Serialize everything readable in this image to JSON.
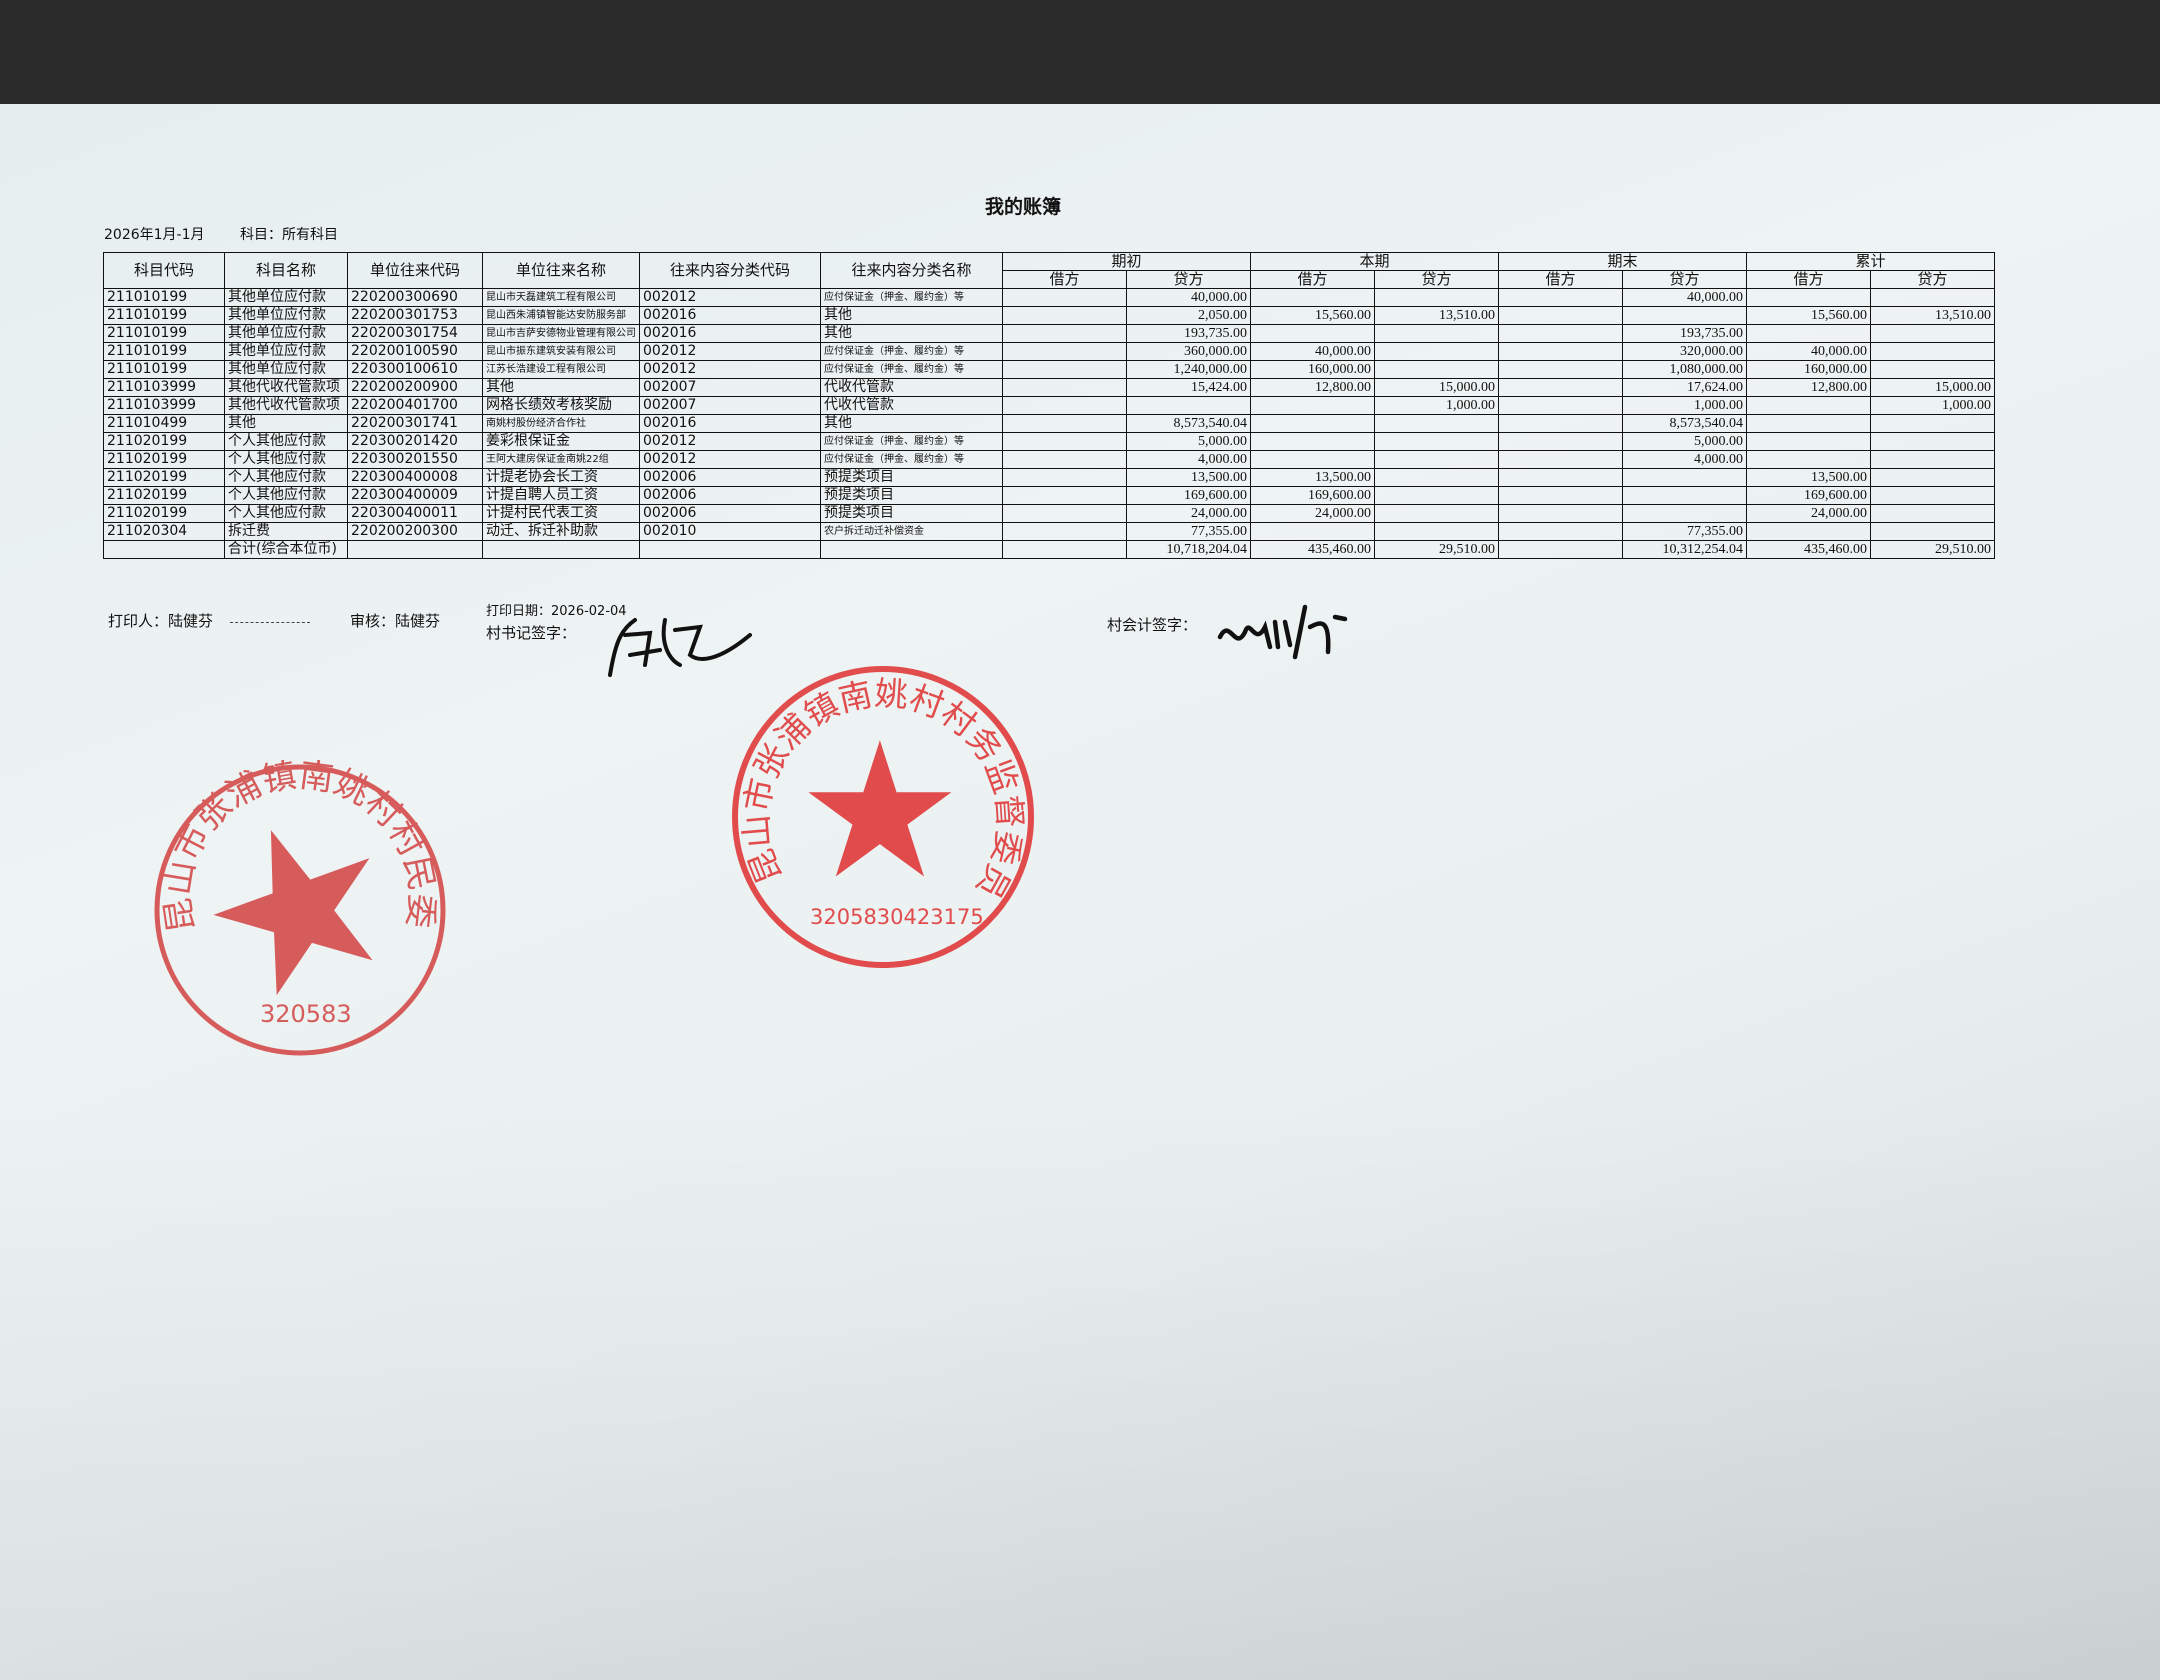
{
  "document": {
    "title": "我的账簿",
    "period": "2026年1月-1月",
    "subject": "科目：所有科目"
  },
  "table": {
    "headers": [
      "科目代码",
      "科目名称",
      "单位往来代码",
      "单位往来名称",
      "往来内容分类代码",
      "往来内容分类名称"
    ],
    "groups": [
      "期初",
      "本期",
      "期末",
      "累计"
    ],
    "sub_headers": [
      "借方",
      "贷方"
    ],
    "rows": [
      [
        "211010199",
        "其他单位应付款",
        "220200300690",
        "昆山市天磊建筑工程有限公司",
        "002012",
        "应付保证金（押金、履约金）等",
        "",
        "40,000.00",
        "",
        "",
        "",
        "40,000.00",
        "",
        ""
      ],
      [
        "211010199",
        "其他单位应付款",
        "220200301753",
        "昆山西朱浦镇智能达安防服务部",
        "002016",
        "其他",
        "",
        "2,050.00",
        "15,560.00",
        "13,510.00",
        "",
        "",
        "15,560.00",
        "13,510.00"
      ],
      [
        "211010199",
        "其他单位应付款",
        "220200301754",
        "昆山市吉萨安德物业管理有限公司",
        "002016",
        "其他",
        "",
        "193,735.00",
        "",
        "",
        "",
        "193,735.00",
        "",
        ""
      ],
      [
        "211010199",
        "其他单位应付款",
        "220200100590",
        "昆山市振东建筑安装有限公司",
        "002012",
        "应付保证金（押金、履约金）等",
        "",
        "360,000.00",
        "40,000.00",
        "",
        "",
        "320,000.00",
        "40,000.00",
        ""
      ],
      [
        "211010199",
        "其他单位应付款",
        "220300100610",
        "江苏长浩建设工程有限公司",
        "002012",
        "应付保证金（押金、履约金）等",
        "",
        "1,240,000.00",
        "160,000.00",
        "",
        "",
        "1,080,000.00",
        "160,000.00",
        ""
      ],
      [
        "2110103999",
        "其他代收代管款项",
        "220200200900",
        "其他",
        "002007",
        "代收代管款",
        "",
        "15,424.00",
        "12,800.00",
        "15,000.00",
        "",
        "17,624.00",
        "12,800.00",
        "15,000.00"
      ],
      [
        "2110103999",
        "其他代收代管款项",
        "220200401700",
        "网格长绩效考核奖励",
        "002007",
        "代收代管款",
        "",
        "",
        "",
        "1,000.00",
        "",
        "1,000.00",
        "",
        "1,000.00"
      ],
      [
        "211010499",
        "其他",
        "220200301741",
        "南姚村股份经济合作社",
        "002016",
        "其他",
        "",
        "8,573,540.04",
        "",
        "",
        "",
        "8,573,540.04",
        "",
        ""
      ],
      [
        "211020199",
        "个人其他应付款",
        "220300201420",
        "姜彩根保证金",
        "002012",
        "应付保证金（押金、履约金）等",
        "",
        "5,000.00",
        "",
        "",
        "",
        "5,000.00",
        "",
        ""
      ],
      [
        "211020199",
        "个人其他应付款",
        "220300201550",
        "王阿大建房保证金南姚22组",
        "002012",
        "应付保证金（押金、履约金）等",
        "",
        "4,000.00",
        "",
        "",
        "",
        "4,000.00",
        "",
        ""
      ],
      [
        "211020199",
        "个人其他应付款",
        "220300400008",
        "计提老协会长工资",
        "002006",
        "预提类项目",
        "",
        "13,500.00",
        "13,500.00",
        "",
        "",
        "",
        "13,500.00",
        ""
      ],
      [
        "211020199",
        "个人其他应付款",
        "220300400009",
        "计提自聘人员工资",
        "002006",
        "预提类项目",
        "",
        "169,600.00",
        "169,600.00",
        "",
        "",
        "",
        "169,600.00",
        ""
      ],
      [
        "211020199",
        "个人其他应付款",
        "220300400011",
        "计提村民代表工资",
        "002006",
        "预提类项目",
        "",
        "24,000.00",
        "24,000.00",
        "",
        "",
        "",
        "24,000.00",
        ""
      ],
      [
        "211020304",
        "拆迁费",
        "220200200300",
        "动迁、拆迁补助款",
        "002010",
        "农户拆迁动迁补偿资金",
        "",
        "77,355.00",
        "",
        "",
        "",
        "77,355.00",
        "",
        ""
      ]
    ],
    "total": [
      "",
      "合计(综合本位币)",
      "",
      "",
      "",
      "",
      "",
      "10,718,204.04",
      "435,460.00",
      "29,510.00",
      "",
      "10,312,254.04",
      "435,460.00",
      "29,510.00"
    ]
  },
  "footer": {
    "printer": "打印人：陆健芬",
    "reviewer": "审核：陆健芬",
    "print_date": "打印日期：2026-02-04",
    "secretary_sign": "村书记签字：",
    "accountant_sign": "村会计签字："
  },
  "stamps": {
    "villagers_committee": {
      "text": "昆山市张浦镇南姚村村民委员会",
      "code": "320583",
      "color": "#d23a3a"
    },
    "supervision_committee": {
      "text": "昆山市张浦镇南姚村村务监督委员会",
      "code": "3205830423175",
      "color": "#e03a3a"
    }
  }
}
